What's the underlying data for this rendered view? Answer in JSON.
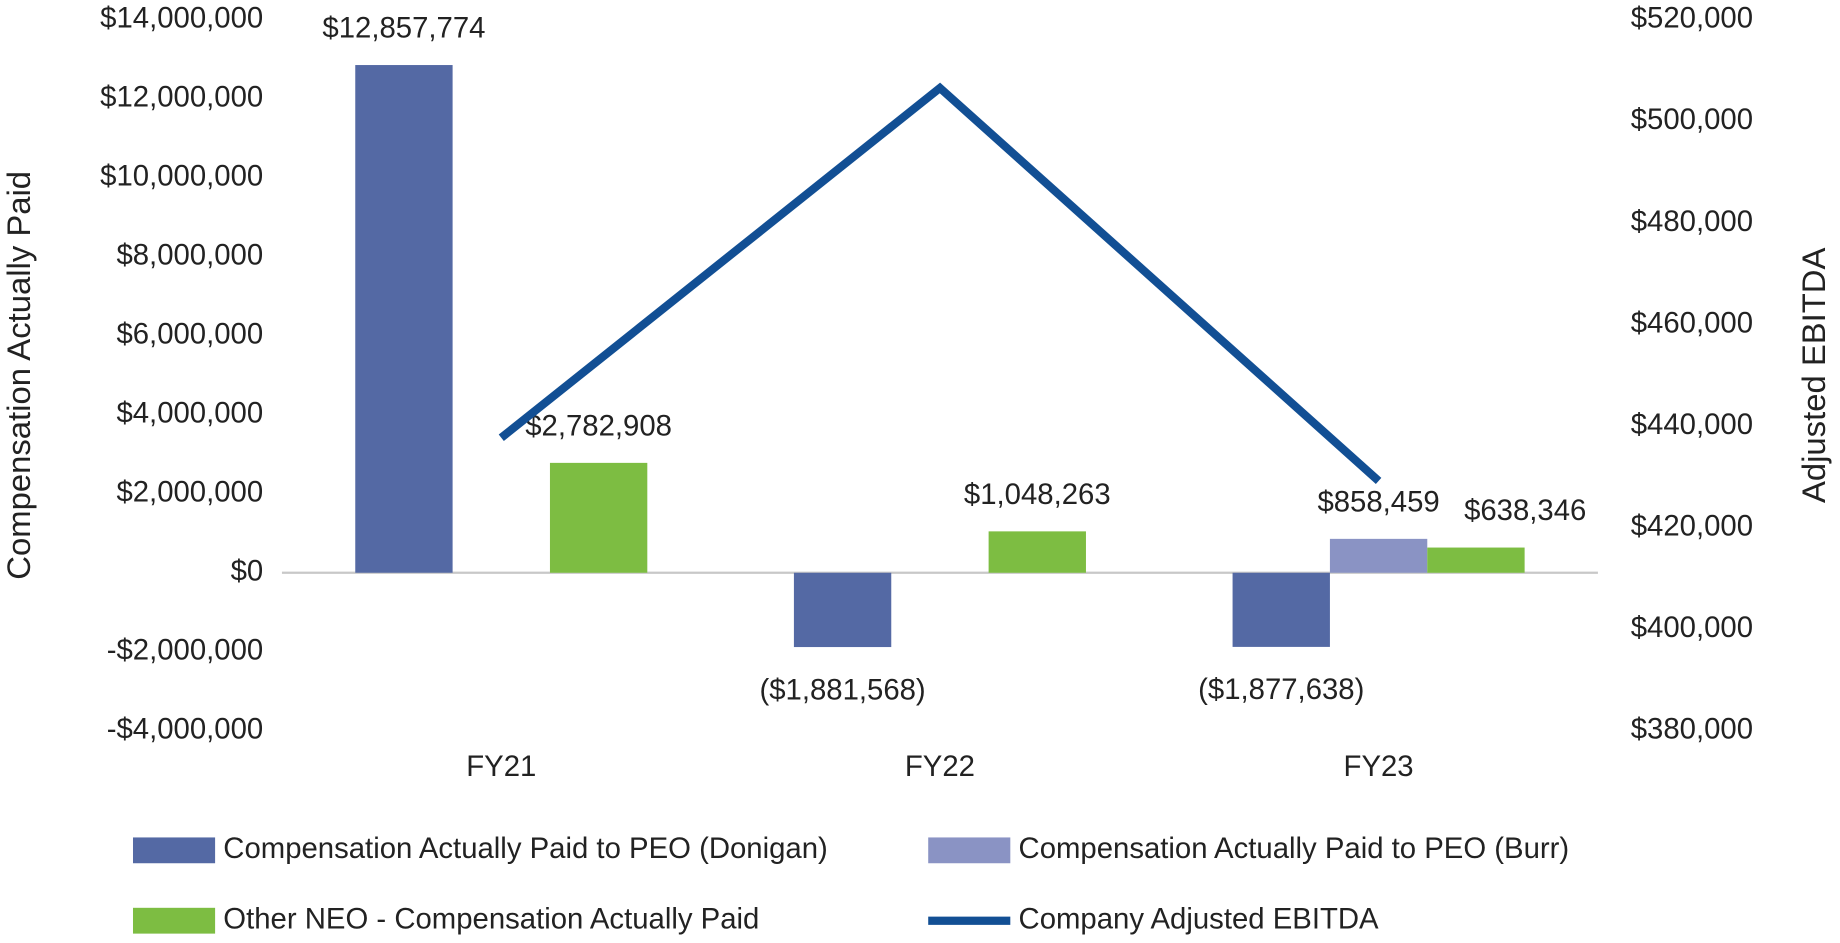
{
  "chart_data": {
    "type": "bar",
    "categories": [
      "FY21",
      "FY22",
      "FY23"
    ],
    "y_label": "Compensation Actually Paid",
    "y2_label": "Adjusted EBITDA",
    "ylim": [
      -4000000,
      14000000
    ],
    "yticks": [
      {
        "value": -4000000,
        "label": "-$4,000,000"
      },
      {
        "value": -2000000,
        "label": "-$2,000,000"
      },
      {
        "value": 0,
        "label": "$0"
      },
      {
        "value": 2000000,
        "label": "$2,000,000"
      },
      {
        "value": 4000000,
        "label": "$4,000,000"
      },
      {
        "value": 6000000,
        "label": "$6,000,000"
      },
      {
        "value": 8000000,
        "label": "$8,000,000"
      },
      {
        "value": 10000000,
        "label": "$10,000,000"
      },
      {
        "value": 12000000,
        "label": "$12,000,000"
      },
      {
        "value": 14000000,
        "label": "$14,000,000"
      }
    ],
    "y2lim": [
      380000,
      520000
    ],
    "y2ticks": [
      {
        "value": 380000,
        "label": "$380,000"
      },
      {
        "value": 400000,
        "label": "$400,000"
      },
      {
        "value": 420000,
        "label": "$420,000"
      },
      {
        "value": 440000,
        "label": "$440,000"
      },
      {
        "value": 460000,
        "label": "$460,000"
      },
      {
        "value": 480000,
        "label": "$480,000"
      },
      {
        "value": 500000,
        "label": "$500,000"
      },
      {
        "value": 520000,
        "label": "$520,000"
      }
    ],
    "series": [
      {
        "name": "Compensation Actually Paid to PEO (Donigan)",
        "color": "#5469a4",
        "values": [
          12857774,
          -1881568,
          -1877638
        ],
        "value_labels": [
          "$12,857,774",
          "($1,881,568)",
          "($1,877,638)"
        ]
      },
      {
        "name": "Compensation Actually Paid to PEO (Burr)",
        "color": "#8a93c4",
        "values": [
          null,
          null,
          858459
        ],
        "value_labels": [
          null,
          null,
          "$858,459"
        ]
      },
      {
        "name": "Other NEO - Compensation Actually Paid",
        "color": "#7dbd42",
        "values": [
          2782908,
          1048263,
          638346
        ],
        "value_labels": [
          "$2,782,908",
          "$1,048,263",
          "$638,346"
        ]
      },
      {
        "name": "Company Adjusted EBITDA",
        "color": "#124f94",
        "type": "line",
        "axis": "y2",
        "values": [
          437700,
          506600,
          429200
        ]
      }
    ]
  }
}
